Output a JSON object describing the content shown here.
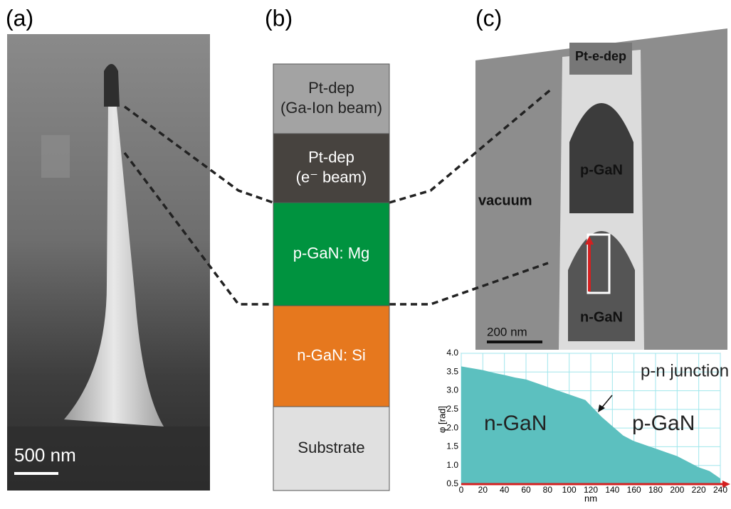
{
  "panels": [
    "(a)",
    "(b)",
    "(c)"
  ],
  "sem": {
    "scale_label": "500 nm"
  },
  "stack": {
    "layers": [
      {
        "lines": [
          "Pt-dep",
          "(Ga-Ion beam)"
        ],
        "color": "#a3a3a3"
      },
      {
        "lines": [
          "Pt-dep",
          "(e⁻ beam)"
        ],
        "color": "#47433f"
      },
      {
        "lines": [
          "p-GaN: Mg"
        ],
        "color": "#00933f"
      },
      {
        "lines": [
          "n-GaN: Si"
        ],
        "color": "#e6781e"
      },
      {
        "lines": [
          "Substrate"
        ],
        "color": "#e0e0e0"
      }
    ]
  },
  "tem": {
    "labels": [
      "Pt-e-dep",
      "p-GaN",
      "vacuum",
      "n-GaN"
    ],
    "scale_label": "200 nm"
  },
  "chart_data": {
    "type": "area",
    "x": [
      0,
      10,
      20,
      30,
      40,
      50,
      60,
      70,
      80,
      90,
      100,
      110,
      115,
      120,
      130,
      140,
      150,
      160,
      170,
      180,
      190,
      200,
      210,
      220,
      230,
      235,
      240
    ],
    "series": [
      {
        "color": "#5cc0bf",
        "values": [
          3.65,
          3.6,
          3.55,
          3.48,
          3.42,
          3.35,
          3.3,
          3.2,
          3.1,
          3.0,
          2.9,
          2.8,
          2.75,
          2.6,
          2.3,
          2.05,
          1.8,
          1.65,
          1.55,
          1.45,
          1.35,
          1.25,
          1.1,
          0.95,
          0.85,
          0.75,
          0.65
        ]
      }
    ],
    "xlim": [
      0,
      240
    ],
    "xticks": [
      0,
      20,
      40,
      60,
      80,
      100,
      120,
      140,
      160,
      180,
      200,
      220,
      240
    ],
    "ylim": [
      0.5,
      4
    ],
    "yticks": [
      0.5,
      {
        "value": 1,
        "label": "1.0"
      },
      1.5,
      {
        "value": 2,
        "label": "2.0"
      },
      2.5,
      {
        "value": 3,
        "label": "3.0"
      },
      3.5,
      {
        "value": 4,
        "label": "4.0"
      }
    ],
    "xlabel": "nm",
    "ylabel": "φ [rad]",
    "grid": true,
    "grid_color": "#9fe6ec",
    "annotations": [
      "p-n junction",
      "n-GaN",
      "p-GaN"
    ]
  }
}
